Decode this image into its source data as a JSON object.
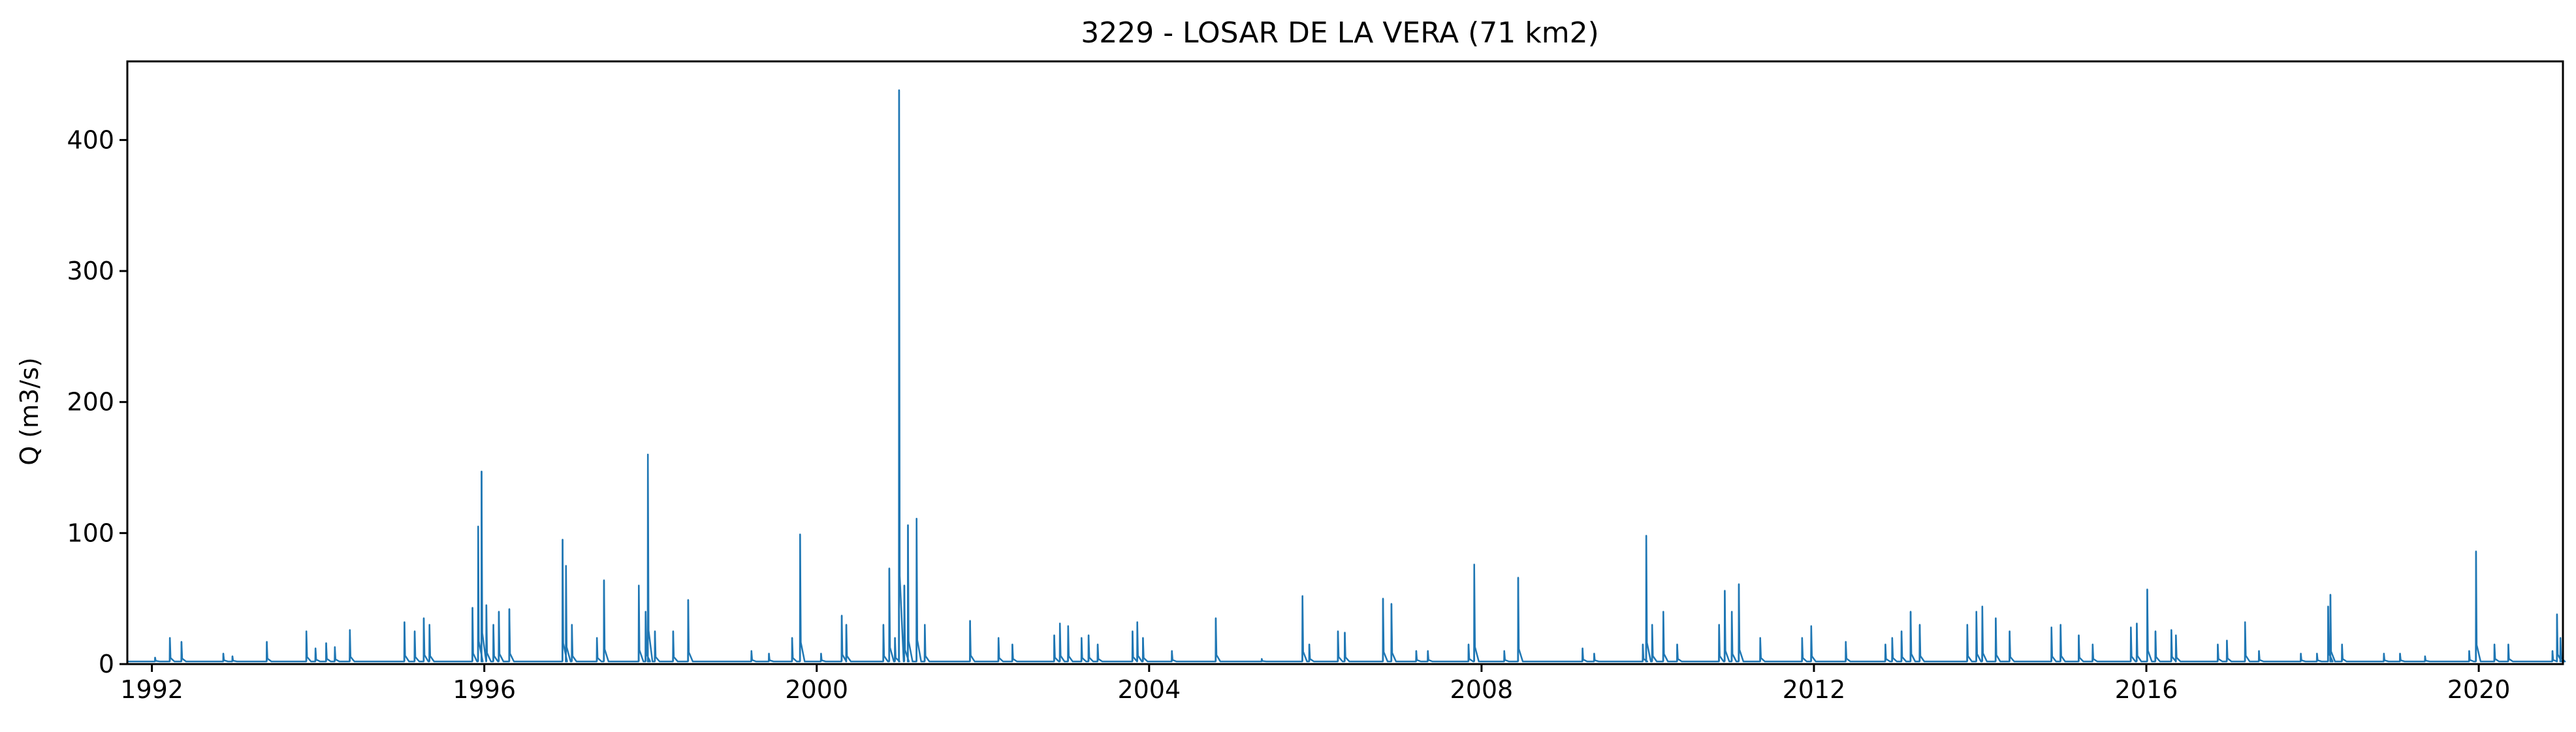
{
  "chart_data": {
    "type": "line",
    "title": "3229 - LOSAR DE LA VERA (71 km2)",
    "xlabel": "",
    "ylabel": "Q (m3/s)",
    "xlim": [
      "1991-09-15",
      "2021-01-05"
    ],
    "ylim": [
      0,
      460
    ],
    "x_ticks": [
      "1992",
      "1996",
      "2000",
      "2004",
      "2008",
      "2012",
      "2016",
      "2020"
    ],
    "y_ticks": [
      0,
      100,
      200,
      300,
      400
    ],
    "grid": false,
    "legend": "none",
    "series": [
      {
        "color": "#1f77b4",
        "baseflow": 2,
        "peaks": [
          [
            "1992-01-15",
            5
          ],
          [
            "1992-03-20",
            20
          ],
          [
            "1992-05-10",
            17
          ],
          [
            "1992-11-10",
            8
          ],
          [
            "1992-12-20",
            6
          ],
          [
            "1993-05-20",
            17
          ],
          [
            "1993-11-10",
            25
          ],
          [
            "1993-12-20",
            12
          ],
          [
            "1994-02-05",
            16
          ],
          [
            "1994-03-15",
            13
          ],
          [
            "1994-05-20",
            26
          ],
          [
            "1995-01-15",
            32
          ],
          [
            "1995-03-01",
            25
          ],
          [
            "1995-04-10",
            35
          ],
          [
            "1995-05-05",
            30
          ],
          [
            "1995-11-10",
            43
          ],
          [
            "1995-12-05",
            105
          ],
          [
            "1995-12-20",
            147
          ],
          [
            "1996-01-10",
            45
          ],
          [
            "1996-02-10",
            30
          ],
          [
            "1996-03-05",
            40
          ],
          [
            "1996-04-20",
            42
          ],
          [
            "1996-12-10",
            95
          ],
          [
            "1996-12-25",
            75
          ],
          [
            "1997-01-20",
            30
          ],
          [
            "1997-05-10",
            20
          ],
          [
            "1997-06-10",
            64
          ],
          [
            "1997-11-10",
            60
          ],
          [
            "1997-12-10",
            40
          ],
          [
            "1997-12-20",
            160
          ],
          [
            "1998-01-20",
            25
          ],
          [
            "1998-04-10",
            25
          ],
          [
            "1998-06-15",
            49
          ],
          [
            "1999-03-20",
            10
          ],
          [
            "1999-06-05",
            8
          ],
          [
            "1999-09-15",
            20
          ],
          [
            "1999-10-20",
            99
          ],
          [
            "2000-01-20",
            8
          ],
          [
            "2000-04-20",
            37
          ],
          [
            "2000-05-10",
            30
          ],
          [
            "2000-10-20",
            30
          ],
          [
            "2000-11-15",
            73
          ],
          [
            "2000-12-10",
            20
          ],
          [
            "2000-12-28",
            438
          ],
          [
            "2001-01-20",
            60
          ],
          [
            "2001-02-05",
            106
          ],
          [
            "2001-03-15",
            111
          ],
          [
            "2001-04-20",
            30
          ],
          [
            "2001-11-05",
            33
          ],
          [
            "2002-03-10",
            20
          ],
          [
            "2002-05-10",
            15
          ],
          [
            "2002-11-10",
            22
          ],
          [
            "2002-12-05",
            31
          ],
          [
            "2003-01-10",
            29
          ],
          [
            "2003-03-10",
            20
          ],
          [
            "2003-04-10",
            22
          ],
          [
            "2003-05-20",
            15
          ],
          [
            "2003-10-20",
            25
          ],
          [
            "2003-11-10",
            32
          ],
          [
            "2003-12-05",
            20
          ],
          [
            "2004-04-10",
            10
          ],
          [
            "2004-10-20",
            35
          ],
          [
            "2005-05-10",
            4
          ],
          [
            "2005-11-05",
            52
          ],
          [
            "2005-12-05",
            15
          ],
          [
            "2006-04-10",
            25
          ],
          [
            "2006-05-10",
            24
          ],
          [
            "2006-10-25",
            50
          ],
          [
            "2006-12-01",
            46
          ],
          [
            "2007-03-20",
            10
          ],
          [
            "2007-05-10",
            10
          ],
          [
            "2007-11-05",
            15
          ],
          [
            "2007-11-30",
            76
          ],
          [
            "2008-04-10",
            10
          ],
          [
            "2008-06-10",
            66
          ],
          [
            "2009-03-20",
            12
          ],
          [
            "2009-05-10",
            8
          ],
          [
            "2009-12-10",
            15
          ],
          [
            "2009-12-25",
            98
          ],
          [
            "2010-01-20",
            30
          ],
          [
            "2010-03-10",
            40
          ],
          [
            "2010-05-10",
            15
          ],
          [
            "2010-11-10",
            30
          ],
          [
            "2010-12-05",
            56
          ],
          [
            "2011-01-05",
            40
          ],
          [
            "2011-02-05",
            61
          ],
          [
            "2011-05-10",
            20
          ],
          [
            "2011-11-10",
            20
          ],
          [
            "2011-12-20",
            29
          ],
          [
            "2012-05-20",
            17
          ],
          [
            "2012-11-10",
            15
          ],
          [
            "2012-12-10",
            20
          ],
          [
            "2013-01-20",
            25
          ],
          [
            "2013-03-01",
            40
          ],
          [
            "2013-04-10",
            30
          ],
          [
            "2013-11-05",
            30
          ],
          [
            "2013-12-15",
            40
          ],
          [
            "2014-01-10",
            44
          ],
          [
            "2014-03-10",
            35
          ],
          [
            "2014-05-10",
            25
          ],
          [
            "2014-11-10",
            28
          ],
          [
            "2014-12-20",
            30
          ],
          [
            "2015-03-10",
            22
          ],
          [
            "2015-05-10",
            15
          ],
          [
            "2015-10-25",
            28
          ],
          [
            "2015-11-20",
            31
          ],
          [
            "2016-01-05",
            57
          ],
          [
            "2016-02-10",
            25
          ],
          [
            "2016-04-20",
            26
          ],
          [
            "2016-05-10",
            22
          ],
          [
            "2016-11-10",
            15
          ],
          [
            "2016-12-20",
            18
          ],
          [
            "2017-03-10",
            32
          ],
          [
            "2017-05-10",
            10
          ],
          [
            "2017-11-10",
            8
          ],
          [
            "2018-01-20",
            8
          ],
          [
            "2018-03-10",
            44
          ],
          [
            "2018-03-20",
            53
          ],
          [
            "2018-05-10",
            15
          ],
          [
            "2018-11-10",
            8
          ],
          [
            "2019-01-20",
            8
          ],
          [
            "2019-05-10",
            6
          ],
          [
            "2019-11-20",
            10
          ],
          [
            "2019-12-20",
            86
          ],
          [
            "2020-03-10",
            15
          ],
          [
            "2020-05-10",
            15
          ],
          [
            "2020-11-20",
            10
          ],
          [
            "2020-12-10",
            38
          ],
          [
            "2020-12-25",
            20
          ]
        ]
      }
    ]
  }
}
